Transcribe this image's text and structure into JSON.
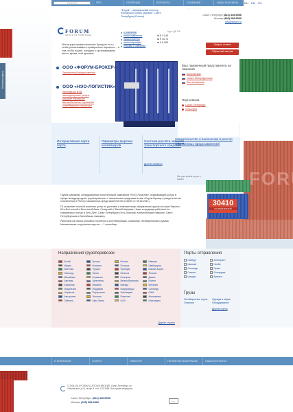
{
  "topnav": {
    "search_placeholder": "ПОИСК",
    "items": [
      "ПРО",
      "ПОЛЕЗНЫЕ ПЕРЕВОЗКИ",
      "КОНТАКТЫ",
      "ПОЛЕЗНЫЕ МАТЕРИАЛЫ",
      "НАШИ КОНТАКТЫ"
    ],
    "langs": [
      "RU",
      "EN",
      "CN"
    ]
  },
  "brand": {
    "name": "FORUM",
    "tag": "GROUP OF COMPANIES"
  },
  "tagline": "Институция профессионалов: брэнд не на то ... чтобы реализовывать проверенные варианты ... в том, чтобы искать, находить и организовывать место, время, и её деловые.",
  "announcement": "\"Форум\" - официальный спонсор юношеского клуба \"Динамо\" Санкт-Петербурга (Россия)",
  "quick_links": [
    "о компании",
    "наши отделения",
    "наши клиенты",
    "наши партнёры",
    "отзывы о компании"
  ],
  "currency": {
    "label": "Курс ЦБ РФ",
    "rows": [
      "$ 31,46",
      "€ 40,74",
      "¥ 5,083"
    ]
  },
  "contacts": {
    "city1": "Санкт-Петербург",
    "phone1": "(812) 449-6556",
    "city2": "Москва",
    "phone2": "(495) 668-6560",
    "email": "info@forum.ru"
  },
  "buttons": {
    "request": "Запрос ставок",
    "feedback": "Обратный звонок"
  },
  "sidetab_label": "Контакты офиса",
  "companies": [
    {
      "name": "ООО «ФОРУМ-БРОКЕР»",
      "links": [
        "Таможенный представитель"
      ]
    },
    {
      "name": "ООО «НЭО-ЛОГИСТИК»",
      "links": [
        "экспедиция ВЭД",
        "экспедиторские услуги",
        "морские перевозки",
        "автомобильные перевозки",
        "контейнерные перевозки"
      ]
    }
  ],
  "customs": {
    "title": "Ваш таможенный представитель на таможнях",
    "posts": [
      "Балтийская",
      "Санкт-Петербургская",
      "Кингисеппская"
    ],
    "ports_title": "Порты ввоза",
    "ports": [
      "Санкт-Петербург",
      "Усть-Луга"
    ]
  },
  "services": {
    "col1": "Интерактивная карта порта",
    "col2": "Параметры морских контейнеров",
    "col3": "Система расчёта загрузки транспортного средства",
    "col3_extra": "Другие сервисы",
    "col4": "Свидетельство о включении в реестр таможенных представителей"
  },
  "cargo_caption": "Мы уже везём грузы с ваших",
  "code_box": {
    "number": "30410",
    "sub": "КОНТЕЙНЕРНЫЙ"
  },
  "about": [
    "Группа компаний, оборудованная логистической компанией «НЭО-Логистик», оказывающей услуги в сфере международных грузоперевозок, и таможенным представителем «Форум-Брокер» (свидетельство о включении в Реестр таможенных представителей № 0145/00 от 05.02.2011).",
    "ГК оказывает полный комплекс услуг по доставке и таможенному оформлению грузов из стран Европы, Юго-Восточной и Восточной Азии, Северной и Южной Америки. Наши сотрудники работают на таможенных постах в Усть-Луге, Санкт-Петербурге (Усть-Лужский, Кингисеппский таможни, Санкт-Петербургская и Балтийская таможни).",
    "Работаем на любых условиях Incoterms с контейнерными, опасными, негабаритными грузами. Минимальная отгрузочная партия — 1 контейнер."
  ],
  "directions": {
    "title": "Направления грузоперевозок",
    "items": [
      "Китай",
      "Греция",
      "Италия",
      "Швеция",
      "Индия",
      "Испания",
      "Польша",
      "Швейцария",
      "Вьетнам",
      "Турция",
      "Франция",
      "Южная Корея",
      "Таиланд",
      "Чехия",
      "Бельгия",
      "Япония",
      "Малайзия",
      "Германия",
      "Болгария",
      "Дания",
      "Австрия",
      "Аргентина",
      "Великобритания",
      "Египет",
      "Бразилия",
      "Израиль",
      "Канада",
      "Мексика",
      "Индонезия",
      "Иордания",
      "Нидерланды",
      "Сингапур",
      "Норвегия",
      "Португалия",
      "Финляндия",
      "США",
      "Австралия",
      "Эстония",
      "Пакистан",
      "Филиппины",
      "Тайвань",
      "Шри-Ланка",
      "ОАЭ",
      "Бангладеш"
    ],
    "all_label": "Другие страны"
  },
  "ports_panel": {
    "title": "Порты отправления",
    "items": [
      "Гамбург",
      "Антверпен",
      "Шанхай",
      "Нинбо",
      "Сингапур",
      "Пусан",
      "Гонконг",
      "Роттердам",
      "Циндао",
      "Бремен"
    ],
    "group2_title": "Грузы",
    "group2_a": [
      "Негабаритные грузы",
      "Опасные"
    ],
    "group2_b": [
      "Одежда и обувь",
      "Оборудование"
    ],
    "all_label": "Другие порты"
  },
  "footnav": [
    "О КОМПАНИИ",
    "УСЛУГИ",
    "НОВОСТИ",
    "ПОЛЕЗНЫЕ МАТЕРИАЛЫ",
    "НАШИ КОНТАКТЫ"
  ],
  "footer": {
    "copy": "© 2006-2014 FORUM CUSTOMS BROKER. Санкт-Петербург, ул. Химическая, д.10, литер А. тел. 123-3455. Все права защищены.",
    "city1": "Санкт-Петербург:",
    "phone1": "(812) 449-6556",
    "city2": "Москва:",
    "phone2": "(495) 668-6560",
    "dev_label": "dev"
  }
}
